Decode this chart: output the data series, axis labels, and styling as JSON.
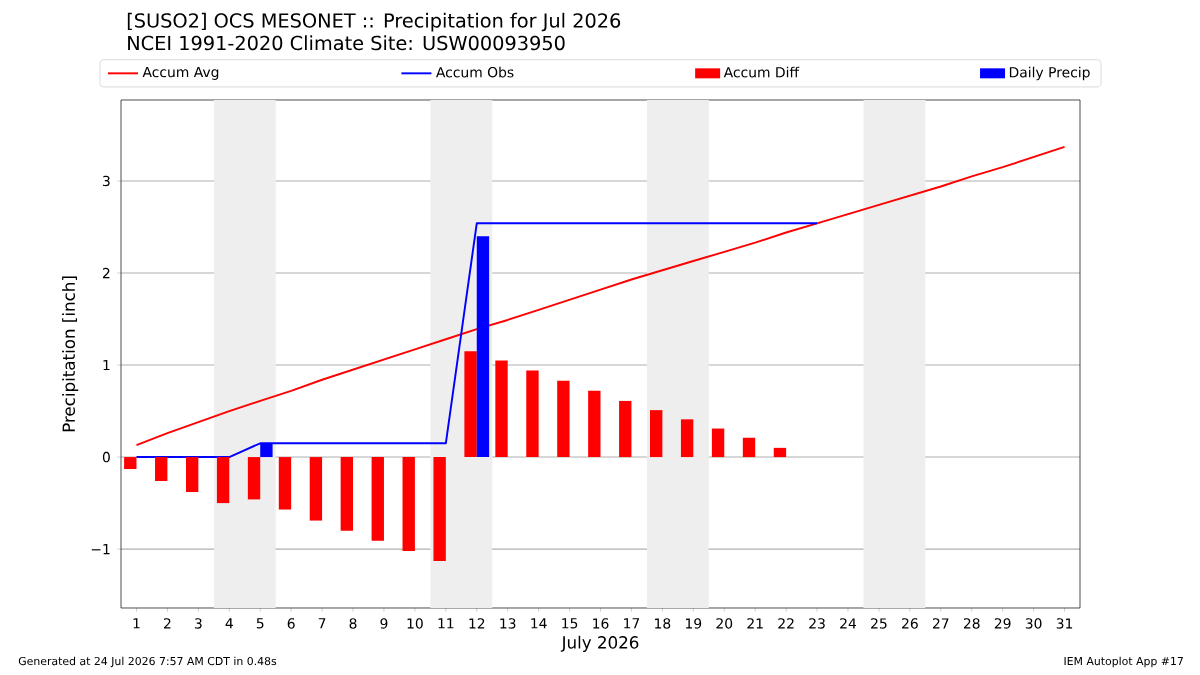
{
  "chart_data": {
    "type": "bar",
    "title": "[SUSO2] OCS MESONET :: Precipitation for Jul 2026",
    "subtitle": "NCEI 1991-2020 Climate Site: USW00093950",
    "xlabel": "July 2026",
    "ylabel": "Precipitation [inch]",
    "x": [
      1,
      2,
      3,
      4,
      5,
      6,
      7,
      8,
      9,
      10,
      11,
      12,
      13,
      14,
      15,
      16,
      17,
      18,
      19,
      20,
      21,
      22,
      23,
      24,
      25,
      26,
      27,
      28,
      29,
      30,
      31
    ],
    "series": [
      {
        "name": "Accum Avg",
        "type": "line",
        "color": "#ff0000",
        "values": [
          0.13,
          0.26,
          0.38,
          0.5,
          0.61,
          0.72,
          0.84,
          0.95,
          1.06,
          1.17,
          1.28,
          1.39,
          1.49,
          1.6,
          1.71,
          1.82,
          1.93,
          2.03,
          2.13,
          2.23,
          2.33,
          2.44,
          2.54,
          2.64,
          2.74,
          2.84,
          2.94,
          3.05,
          3.15,
          3.26,
          3.37
        ]
      },
      {
        "name": "Accum Obs",
        "type": "line",
        "color": "#0000ff",
        "values": [
          0,
          0,
          0,
          0,
          0.15,
          0.15,
          0.15,
          0.15,
          0.15,
          0.15,
          0.15,
          2.54,
          2.54,
          2.54,
          2.54,
          2.54,
          2.54,
          2.54,
          2.54,
          2.54,
          2.54,
          2.54,
          2.54,
          null,
          null,
          null,
          null,
          null,
          null,
          null,
          null
        ]
      },
      {
        "name": "Accum Diff",
        "color": "#ff0000",
        "values": [
          -0.13,
          -0.26,
          -0.38,
          -0.5,
          -0.46,
          -0.57,
          -0.69,
          -0.8,
          -0.91,
          -1.02,
          -1.13,
          1.15,
          1.05,
          0.94,
          0.83,
          0.72,
          0.61,
          0.51,
          0.41,
          0.31,
          0.21,
          0.1,
          null,
          null,
          null,
          null,
          null,
          null,
          null,
          null,
          null
        ]
      },
      {
        "name": "Daily Precip",
        "color": "#0000ff",
        "values": [
          null,
          null,
          null,
          null,
          0.15,
          null,
          null,
          null,
          null,
          null,
          null,
          2.4,
          null,
          null,
          null,
          null,
          null,
          null,
          null,
          null,
          null,
          null,
          null,
          null,
          null,
          null,
          null,
          null,
          null,
          null,
          null
        ]
      }
    ],
    "xlim": [
      0.5,
      31.5
    ],
    "ylim": [
      -1.64,
      3.88
    ],
    "xticks": [
      1,
      2,
      3,
      4,
      5,
      6,
      7,
      8,
      9,
      10,
      11,
      12,
      13,
      14,
      15,
      16,
      17,
      18,
      19,
      20,
      21,
      22,
      23,
      24,
      25,
      26,
      27,
      28,
      29,
      30,
      31
    ],
    "yticks": [
      {
        "value": -1,
        "label": "−1"
      },
      0,
      1,
      2,
      3
    ],
    "bands": [
      {
        "axis": "x",
        "from": 3.5,
        "to": 5.5,
        "color": "#eeeeee"
      },
      {
        "axis": "x",
        "from": 10.5,
        "to": 12.5,
        "color": "#eeeeee"
      },
      {
        "axis": "x",
        "from": 17.5,
        "to": 19.5,
        "color": "#eeeeee"
      },
      {
        "axis": "x",
        "from": 24.5,
        "to": 26.5,
        "color": "#eeeeee"
      }
    ],
    "grid": "y",
    "legend": "top",
    "marker": "none",
    "line_style": "solid",
    "annotations": [
      "Generated at 24 Jul 2026 7:57 AM CDT in 0.48s",
      "IEM Autoplot App #17"
    ]
  }
}
